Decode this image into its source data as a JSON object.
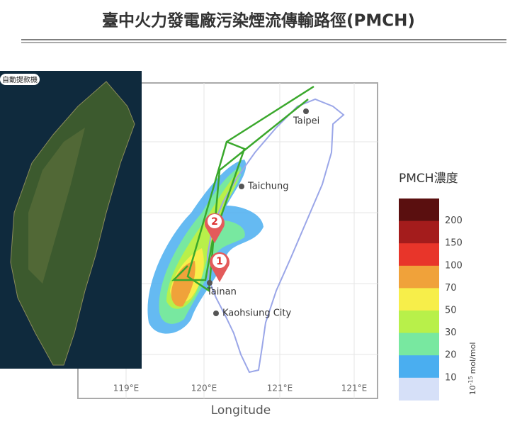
{
  "header": {
    "title": "臺中火力發電廠污染煙流傳輸路徑(PMCH)"
  },
  "satellite": {
    "label": "自動提款機"
  },
  "map": {
    "places": [
      {
        "label": "Taipei"
      },
      {
        "label": "Taichung"
      },
      {
        "label": "Tainan"
      },
      {
        "label": "Kaohsiung City"
      }
    ],
    "markers": [
      "1",
      "2"
    ],
    "x_axis": {
      "ticks": [
        "119°E",
        "120°E",
        "121°E",
        "121°E"
      ],
      "label": "Longitude"
    }
  },
  "legend": {
    "title": "PMCH濃度",
    "levels": [
      200,
      150,
      100,
      70,
      50,
      30,
      20,
      10
    ],
    "unit_base": "10",
    "unit_exp": "-15",
    "unit_rest": "mol/mol"
  }
}
